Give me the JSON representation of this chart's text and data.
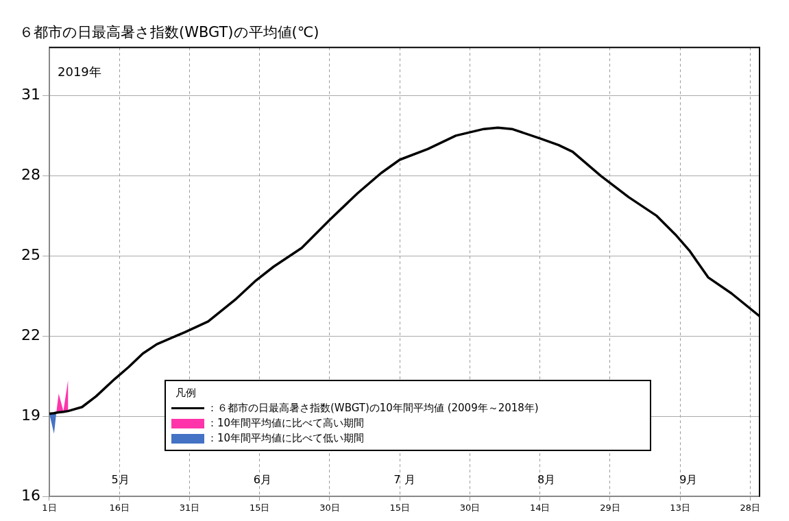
{
  "chart_data": {
    "type": "line",
    "title": "６都市の日最高暑さ指数(WBGT)の平均値(℃)",
    "subtitle": "2019年",
    "legend_title": "凡例",
    "xlim": [
      "2019-05-01",
      "2019-09-30"
    ],
    "xticks": [
      {
        "value": "2019-05-01",
        "label": "1日"
      },
      {
        "value": "2019-05-16",
        "label": "16日"
      },
      {
        "value": "2019-05-31",
        "label": "31日"
      },
      {
        "value": "2019-06-15",
        "label": "15日"
      },
      {
        "value": "2019-06-30",
        "label": "30日"
      },
      {
        "value": "2019-07-15",
        "label": "15日"
      },
      {
        "value": "2019-07-30",
        "label": "30日"
      },
      {
        "value": "2019-08-14",
        "label": "14日"
      },
      {
        "value": "2019-08-29",
        "label": "29日"
      },
      {
        "value": "2019-09-13",
        "label": "13日"
      },
      {
        "value": "2019-09-28",
        "label": "28日"
      }
    ],
    "ylim": [
      16,
      32.8
    ],
    "yticks": [
      16,
      19,
      22,
      25,
      28,
      31
    ],
    "grid": true,
    "legend": "bottom",
    "annotations": [
      "5月",
      "6月",
      "7 月",
      "8月",
      "9月"
    ],
    "series": [
      {
        "name": "：６都市の日最高暑さ指数(WBGT)の10年間平均値 (2009年～2018年)",
        "color": "#000000",
        "x": [
          "2019-05-01",
          "2019-05-02",
          "2019-05-02T12:00",
          "2019-05-03",
          "2019-05-04",
          "2019-05-05",
          "2019-05-08",
          "2019-05-11",
          "2019-05-15",
          "2019-05-18",
          "2019-05-21",
          "2019-05-24",
          "2019-05-30",
          "2019-06-04",
          "2019-06-10",
          "2019-06-14",
          "2019-06-18",
          "2019-06-24",
          "2019-06-30",
          "2019-07-06",
          "2019-07-11",
          "2019-07-15",
          "2019-07-21",
          "2019-07-27",
          "2019-08-02",
          "2019-08-05",
          "2019-08-08",
          "2019-08-14",
          "2019-08-18",
          "2019-08-21",
          "2019-08-27",
          "2019-09-02",
          "2019-09-08",
          "2019-09-12",
          "2019-09-15",
          "2019-09-19",
          "2019-09-24",
          "2019-09-30"
        ],
        "values": [
          19.1,
          19.12,
          19.14,
          19.15,
          19.17,
          19.2,
          19.35,
          19.75,
          20.4,
          20.85,
          21.35,
          21.7,
          22.15,
          22.55,
          23.4,
          24.05,
          24.6,
          25.3,
          26.35,
          27.35,
          28.1,
          28.6,
          29.0,
          29.5,
          29.75,
          29.8,
          29.75,
          29.4,
          29.15,
          28.9,
          28.0,
          27.2,
          26.5,
          25.8,
          25.2,
          24.2,
          23.6,
          22.75
        ]
      },
      {
        "name": "：10年間平均値に比べて高い期間",
        "type": "area",
        "color": "#ff33aa",
        "x": [
          "2019-05-02T12:00",
          "2019-05-03",
          "2019-05-04",
          "2019-05-05"
        ],
        "values": [
          19.15,
          19.85,
          19.2,
          20.35
        ]
      },
      {
        "name": "：10年間平均値に比べて低い期間",
        "type": "area",
        "color": "#4472c4",
        "x": [
          "2019-05-01",
          "2019-05-02",
          "2019-05-02T12:00"
        ],
        "values": [
          19.1,
          18.35,
          19.15
        ]
      }
    ]
  }
}
